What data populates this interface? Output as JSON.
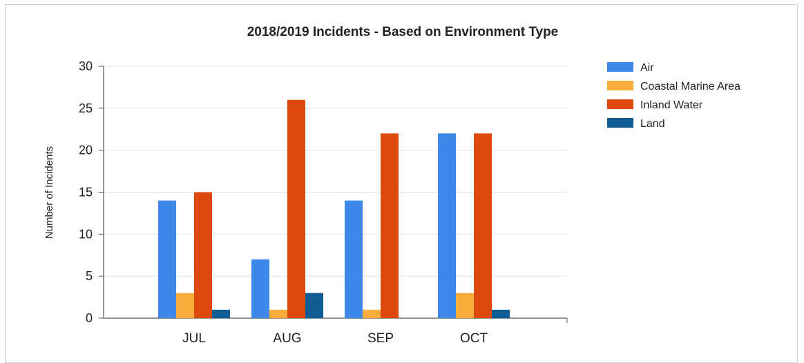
{
  "chart_data": {
    "type": "bar",
    "title": "2018/2019 Incidents - Based on Environment Type",
    "xlabel": "",
    "ylabel": "Number of Incidents",
    "categories": [
      "JUL",
      "AUG",
      "SEP",
      "OCT"
    ],
    "ylim": [
      0,
      30
    ],
    "yticks": [
      0,
      5,
      10,
      15,
      20,
      25,
      30
    ],
    "grid": true,
    "legend_position": "right",
    "series": [
      {
        "name": "Air",
        "color": "#3d88e8",
        "values": [
          14,
          7,
          14,
          22
        ]
      },
      {
        "name": "Coastal Marine Area",
        "color": "#f8ad3a",
        "values": [
          3,
          1,
          1,
          3
        ]
      },
      {
        "name": "Inland Water",
        "color": "#dc4a0d",
        "values": [
          15,
          26,
          22,
          22
        ]
      },
      {
        "name": "Land",
        "color": "#115d96",
        "values": [
          1,
          3,
          0,
          1
        ]
      }
    ]
  }
}
